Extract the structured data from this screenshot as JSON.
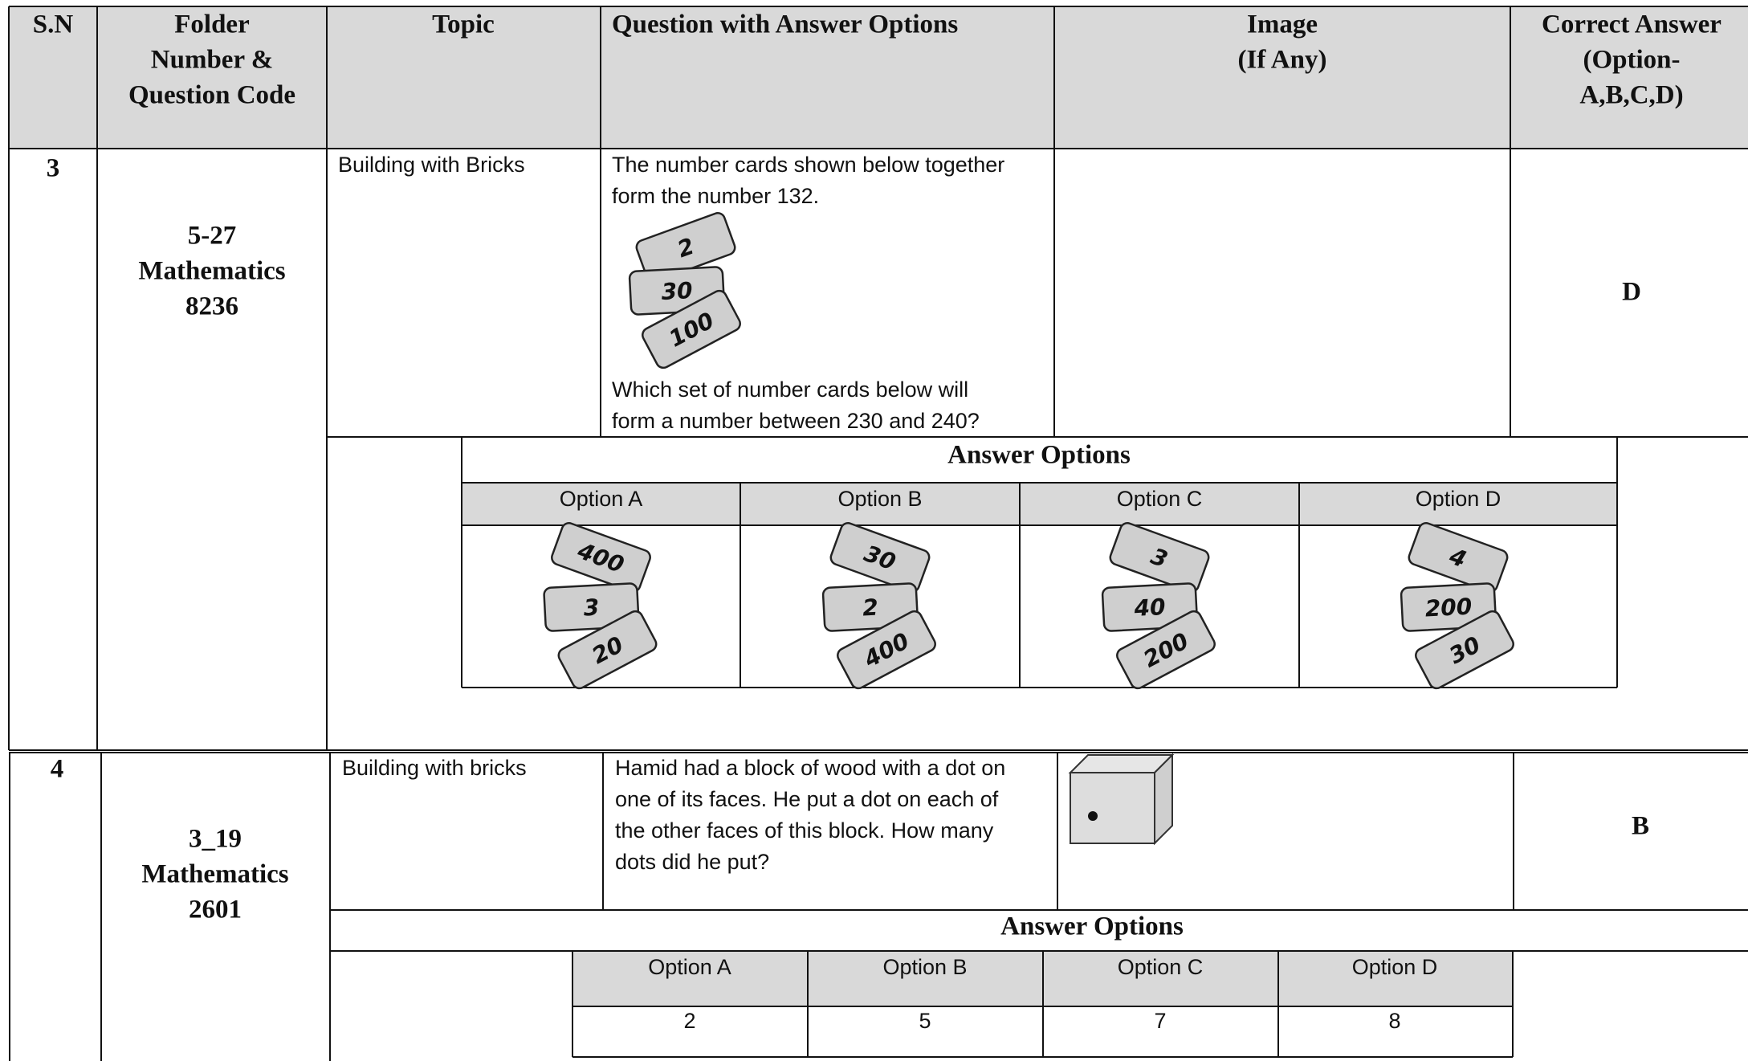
{
  "header": {
    "columns": [
      [
        "S.N"
      ],
      [
        "Folder",
        "Number &",
        "Question Code"
      ],
      [
        "Topic"
      ],
      [
        "Question with Answer Options"
      ],
      [
        "Image",
        "(If Any)"
      ],
      [
        "Correct Answer",
        "(Option-",
        "A,B,C,D)"
      ]
    ]
  },
  "rows": [
    {
      "sn": "3",
      "code": [
        "5-27",
        "Mathematics",
        "8236"
      ],
      "topic": "Building with Bricks",
      "question": [
        "The number cards shown below together",
        "form the number 132."
      ],
      "question_cards": [
        "2",
        "30",
        "100"
      ],
      "question_after": [
        "Which set of number cards below will",
        "form a number between 230 and 240?"
      ],
      "answer": "D",
      "options_title": "Answer Options",
      "options": [
        {
          "label": "Option A",
          "cards": [
            "400",
            "3",
            "20"
          ]
        },
        {
          "label": "Option B",
          "cards": [
            "30",
            "2",
            "400"
          ]
        },
        {
          "label": "Option C",
          "cards": [
            "3",
            "40",
            "200"
          ]
        },
        {
          "label": "Option D",
          "cards": [
            "4",
            "200",
            "30"
          ]
        }
      ]
    },
    {
      "sn": "4",
      "code": [
        "3_19",
        "Mathematics",
        "2601"
      ],
      "topic": "Building with bricks",
      "question": [
        "Hamid had a block of wood with a dot on",
        "one of its faces. He put a dot on each of",
        "the other faces of this block. How many",
        "dots did he put?"
      ],
      "answer": "B",
      "options_title": "Answer Options",
      "options": [
        {
          "label": "Option A",
          "value": "2"
        },
        {
          "label": "Option B",
          "value": "5"
        },
        {
          "label": "Option C",
          "value": "7"
        },
        {
          "label": "Option D",
          "value": "8"
        }
      ]
    }
  ]
}
